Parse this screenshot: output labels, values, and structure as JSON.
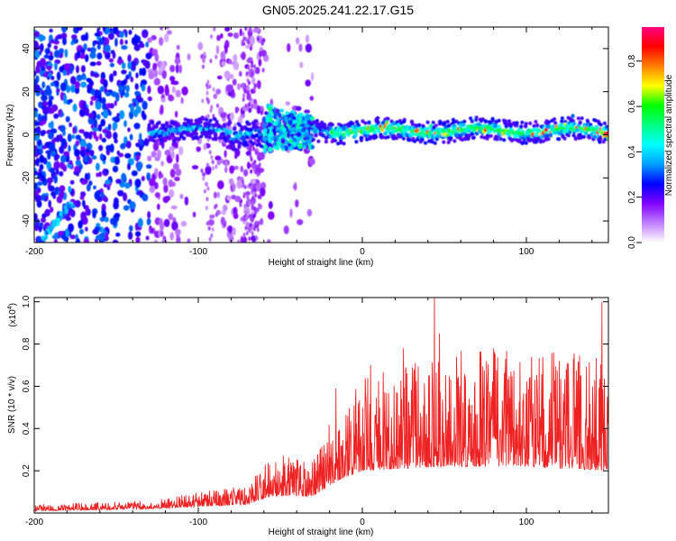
{
  "title": "GN05.2025.241.22.17.G15",
  "chart_data": [
    {
      "type": "heatmap",
      "xlabel": "Height of straight line (km)",
      "ylabel": "Frequency (Hz)",
      "xlim": [
        -200,
        150
      ],
      "ylim": [
        -50,
        50
      ],
      "xticks": [
        "-200",
        "-100",
        "0",
        "100"
      ],
      "yticks": [
        "-40",
        "-20",
        "0",
        "20",
        "40"
      ],
      "colorbar": {
        "label": "Normalized spectral amplitude",
        "ticks": [
          "0.0",
          "0.2",
          "0.4",
          "0.6",
          "0.8"
        ],
        "range": [
          0,
          0.95
        ],
        "colors": [
          "#ffffff",
          "#c080ff",
          "#8000ff",
          "#0000ff",
          "#00a0ff",
          "#00ffff",
          "#00ff80",
          "#00ff00",
          "#ffff00",
          "#ff8000",
          "#ff0000",
          "#ff0080"
        ]
      },
      "features": {
        "noise_region_x": [
          -200,
          -60
        ],
        "main_band_x": [
          -130,
          150
        ],
        "main_band_freq_hz": 2,
        "disturbance_x": [
          -60,
          -30
        ],
        "disturbance_freq_hz": [
          -8,
          14
        ]
      }
    },
    {
      "type": "line",
      "xlabel": "Height of straight line (km)",
      "ylabel": "SNR (10 * v/v)",
      "multiplier": "(x10",
      "multiplier_exp": "4",
      "multiplier_close": ")",
      "xlim": [
        -200,
        150
      ],
      "ylim": [
        0,
        1.02
      ],
      "xticks": [
        "-200",
        "-100",
        "0",
        "100"
      ],
      "yticks": [
        "0.2",
        "0.4",
        "0.6",
        "0.8",
        "1.0"
      ],
      "color": "#ee2222",
      "envelope": [
        {
          "x": -200,
          "base": 0.01,
          "amp": 0.03
        },
        {
          "x": -130,
          "base": 0.02,
          "amp": 0.04
        },
        {
          "x": -100,
          "base": 0.03,
          "amp": 0.07
        },
        {
          "x": -70,
          "base": 0.04,
          "amp": 0.09
        },
        {
          "x": -55,
          "base": 0.08,
          "amp": 0.2
        },
        {
          "x": -30,
          "base": 0.08,
          "amp": 0.18
        },
        {
          "x": -16,
          "base": 0.15,
          "amp": 0.35
        },
        {
          "x": 0,
          "base": 0.2,
          "amp": 0.45
        },
        {
          "x": 50,
          "base": 0.22,
          "amp": 0.55
        },
        {
          "x": 100,
          "base": 0.22,
          "amp": 0.55
        },
        {
          "x": 150,
          "base": 0.2,
          "amp": 0.55
        }
      ],
      "peaks": [
        {
          "x": 44,
          "y": 1.02
        },
        {
          "x": 47,
          "y": 0.85
        },
        {
          "x": 146,
          "y": 1.0
        },
        {
          "x": 5,
          "y": 0.7
        },
        {
          "x": -16,
          "y": 0.59
        },
        {
          "x": 25,
          "y": 0.78
        },
        {
          "x": 80,
          "y": 0.78
        },
        {
          "x": 120,
          "y": 0.72
        }
      ]
    }
  ]
}
